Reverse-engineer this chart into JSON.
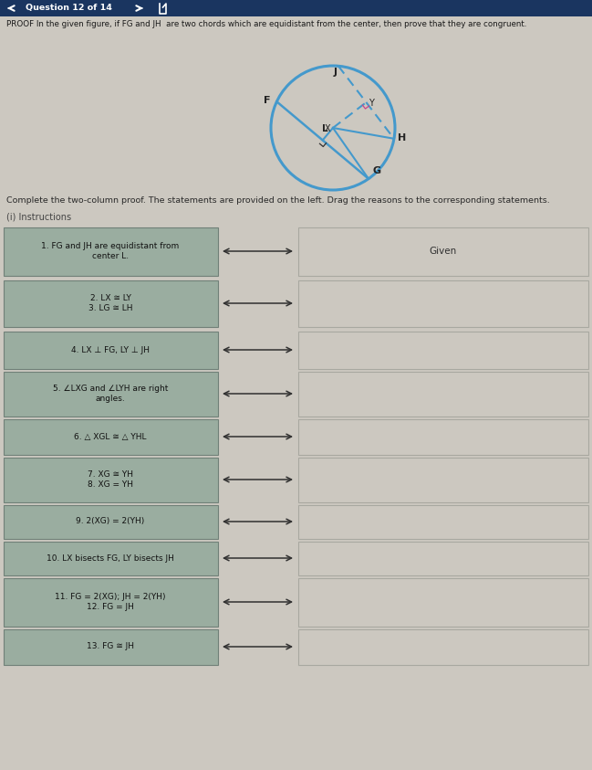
{
  "bg_color": "#ccc8c0",
  "header_bg": "#1a3560",
  "header_text": "Question 12 of 14",
  "title": "PROOF In the given figure, if FG and JH  are two chords which are equidistant from the center, then prove that they are congruent.",
  "complete_text": "Complete the two-column proof. The statements are provided on the left. Drag the reasons to the corresponding statements.",
  "instructions_label": "(i) Instructions",
  "statements": [
    "1. FG and JH are equidistant from\ncenter L.",
    "2. LX ≅ LY\n3. LG ≅ LH",
    "4. LX ⊥ FG, LY ⊥ JH",
    "5. ∠LXG and ∠LYH are right\nangles.",
    "6. △ XGL ≅ △ YHL",
    "7. XG ≅ YH\n8. XG = YH",
    "9. 2(XG) = 2(YH)",
    "10. LX bisects FG, LY bisects JH",
    "11. FG = 2(XG); JH = 2(YH)\n12. FG = JH",
    "13. FG ≅ JH"
  ],
  "given_label": "Given",
  "left_box_color": "#9aada0",
  "left_box_edge": "#708078",
  "right_box_color": "#ccc8c0",
  "right_box_edge": "#a8a8a0",
  "arrow_color": "#303030",
  "circle_color": "#4499cc",
  "label_color": "#222222"
}
